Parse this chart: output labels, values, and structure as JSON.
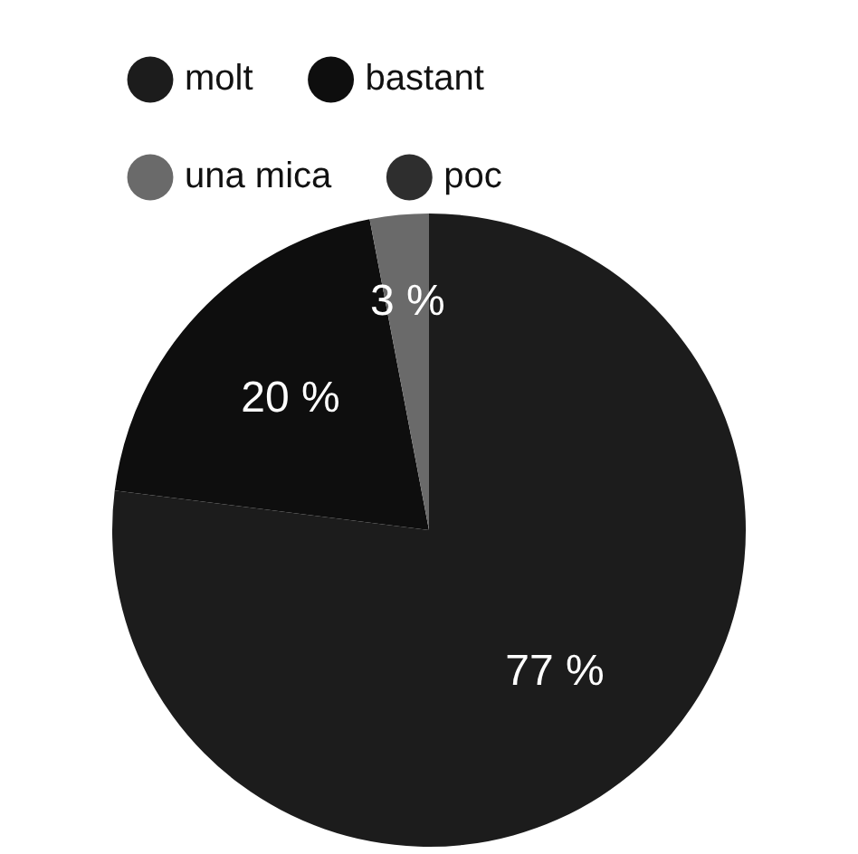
{
  "chart_data": {
    "type": "pie",
    "categories": [
      "molt",
      "bastant",
      "una mica",
      "poc"
    ],
    "values": [
      77,
      20,
      3,
      0
    ],
    "colors": [
      "#1c1c1c",
      "#0e0e0e",
      "#6a6a6a",
      "#2e2e2e"
    ],
    "value_labels": [
      "77 %",
      "20 %",
      "3 %",
      null
    ],
    "legend": "top left"
  }
}
